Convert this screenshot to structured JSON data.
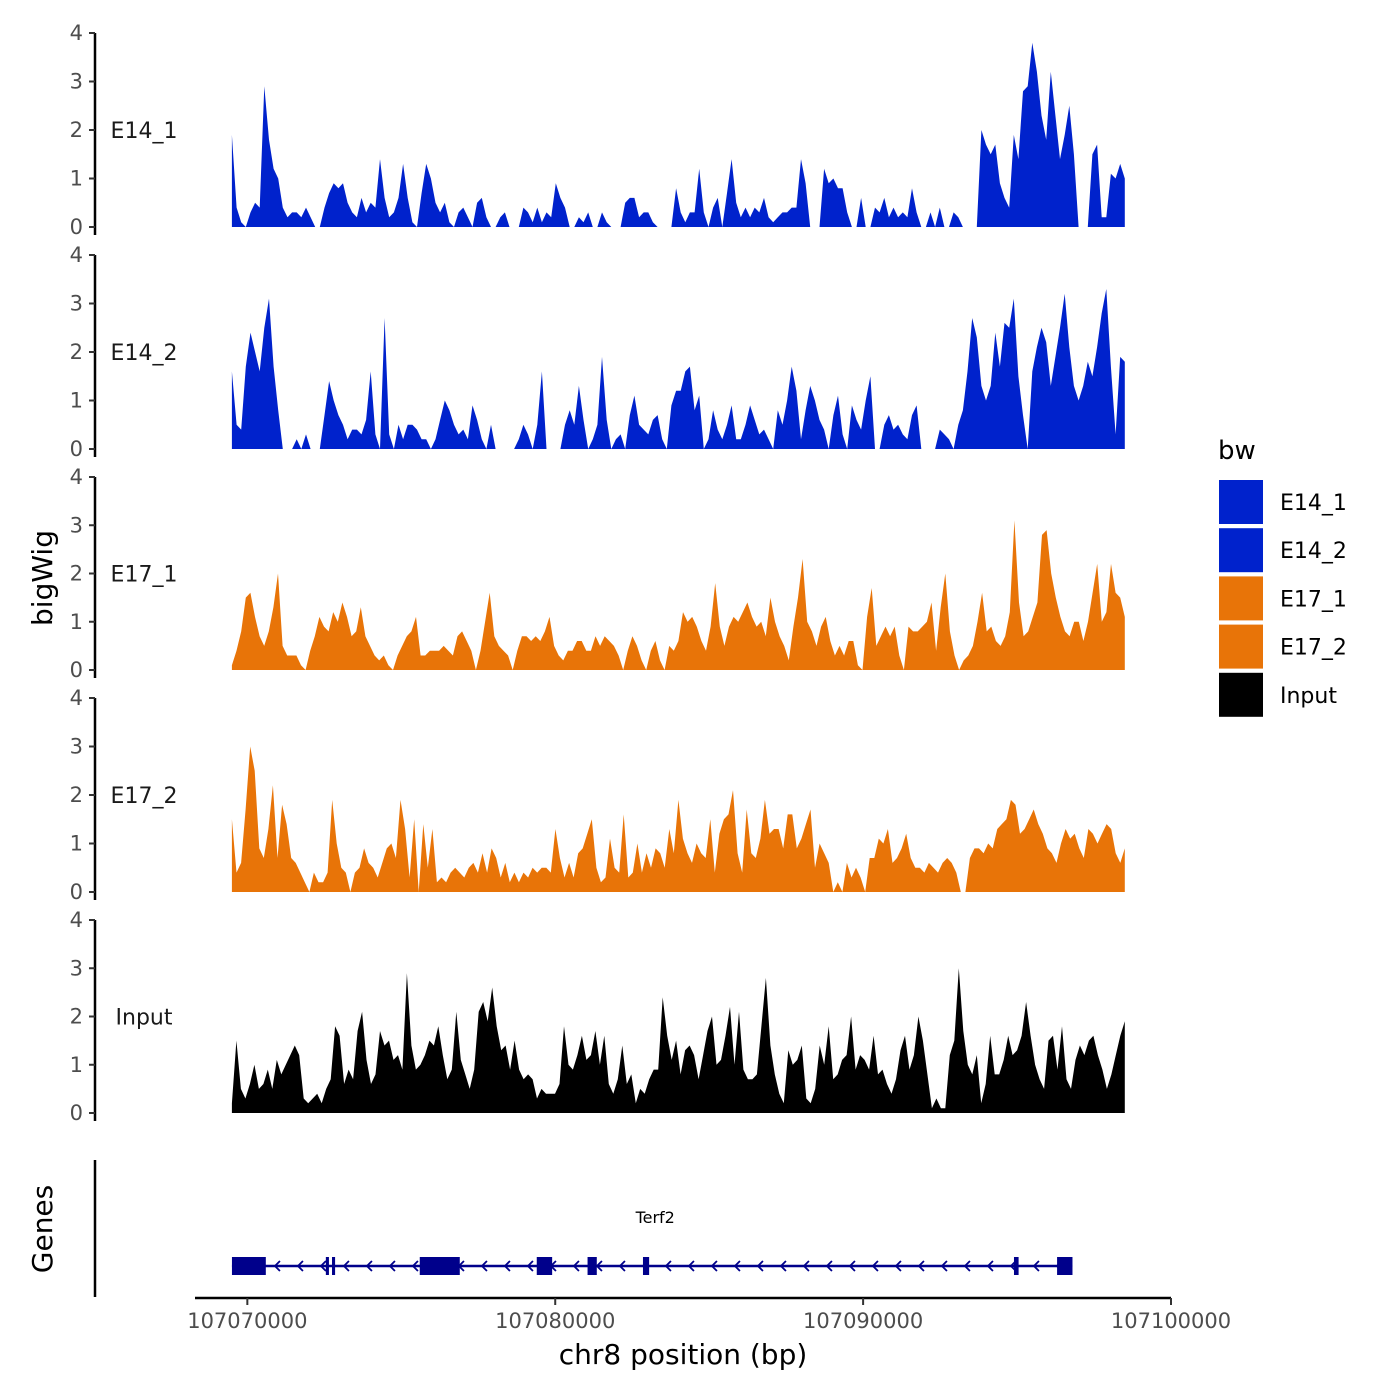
{
  "chart_data": {
    "type": "area",
    "y_axis_title": "bigWig",
    "x_axis_title": "chr8 position (bp)",
    "y_ticks": [
      "0",
      "1",
      "2",
      "3",
      "4"
    ],
    "ylim": [
      0,
      4
    ],
    "xlim": [
      107068300,
      107100000
    ],
    "x_ticks": [
      {
        "value": 107070000,
        "label": "107070000"
      },
      {
        "value": 107080000,
        "label": "107080000"
      },
      {
        "value": 107090000,
        "label": "107090000"
      },
      {
        "value": 107100000,
        "label": "107100000"
      }
    ],
    "track_range": [
      107069500,
      107098500
    ],
    "legend": {
      "title": "bw",
      "entries": [
        {
          "label": "E14_1",
          "color": "#0022cc"
        },
        {
          "label": "E14_2",
          "color": "#0022cc"
        },
        {
          "label": "E17_1",
          "color": "#e87408"
        },
        {
          "label": "E17_2",
          "color": "#e87408"
        },
        {
          "label": "Input",
          "color": "#000000"
        }
      ]
    },
    "series": [
      {
        "name": "E14_1",
        "color": "#0022cc",
        "values": [
          1.9,
          0.4,
          0.1,
          0.0,
          0.3,
          0.5,
          0.4,
          2.9,
          1.8,
          1.2,
          1.0,
          0.4,
          0.2,
          0.3,
          0.3,
          0.2,
          0.4,
          0.2,
          0.0,
          0.0,
          0.4,
          0.7,
          0.9,
          0.8,
          0.9,
          0.5,
          0.3,
          0.2,
          0.6,
          0.3,
          0.5,
          0.4,
          1.4,
          0.6,
          0.2,
          0.3,
          0.6,
          1.3,
          0.6,
          0.1,
          0.0,
          0.7,
          1.3,
          1.0,
          0.5,
          0.3,
          0.5,
          0.1,
          0.0,
          0.3,
          0.4,
          0.2,
          0.0,
          0.5,
          0.6,
          0.2,
          0.0,
          0.0,
          0.2,
          0.3,
          0.0,
          0.0,
          0.0,
          0.4,
          0.3,
          0.1,
          0.4,
          0.1,
          0.3,
          0.2,
          0.9,
          0.6,
          0.4,
          0.0,
          0.0,
          0.2,
          0.1,
          0.3,
          0.0,
          0.0,
          0.3,
          0.1,
          0.0,
          0.0,
          0.0,
          0.5,
          0.6,
          0.6,
          0.2,
          0.3,
          0.3,
          0.1,
          0.0,
          0.0,
          0.0,
          0.0,
          0.8,
          0.3,
          0.1,
          0.3,
          0.3,
          1.2,
          0.3,
          0.0,
          0.4,
          0.6,
          0.0,
          0.7,
          1.4,
          0.5,
          0.2,
          0.4,
          0.2,
          0.4,
          0.3,
          0.6,
          0.2,
          0.1,
          0.2,
          0.3,
          0.3,
          0.4,
          0.4,
          1.4,
          0.9,
          0.0,
          0.0,
          0.0,
          1.2,
          0.9,
          1.0,
          0.8,
          0.8,
          0.3,
          0.0,
          0.0,
          0.6,
          0.0,
          0.0,
          0.4,
          0.3,
          0.6,
          0.2,
          0.4,
          0.2,
          0.3,
          0.2,
          0.8,
          0.3,
          0.0,
          0.0,
          0.3,
          0.0,
          0.4,
          0.0,
          0.0,
          0.3,
          0.2,
          0.0,
          0.0,
          0.0,
          0.0,
          2.0,
          1.7,
          1.5,
          1.7,
          0.9,
          0.6,
          0.4,
          1.9,
          1.4,
          2.8,
          2.9,
          3.8,
          3.2,
          2.3,
          1.8,
          3.2,
          2.3,
          1.4,
          1.9,
          2.5,
          1.5,
          0.0,
          0.0,
          0.0,
          1.5,
          1.7,
          0.2,
          0.2,
          1.1,
          1.0,
          1.3,
          1.0
        ]
      },
      {
        "name": "E14_2",
        "color": "#0022cc",
        "values": [
          1.6,
          0.5,
          0.4,
          1.7,
          2.4,
          2.0,
          1.6,
          2.5,
          3.1,
          1.7,
          0.8,
          0.0,
          0.0,
          0.0,
          0.2,
          0.0,
          0.3,
          0.0,
          0.0,
          0.0,
          0.7,
          1.4,
          1.0,
          0.7,
          0.5,
          0.2,
          0.4,
          0.4,
          0.3,
          0.6,
          1.6,
          0.3,
          0.0,
          2.7,
          0.3,
          0.0,
          0.5,
          0.2,
          0.5,
          0.5,
          0.4,
          0.2,
          0.2,
          0.0,
          0.2,
          0.6,
          1.0,
          0.8,
          0.5,
          0.3,
          0.4,
          0.2,
          0.9,
          0.6,
          0.2,
          0.0,
          0.5,
          0.0,
          0.0,
          0.0,
          0.0,
          0.0,
          0.2,
          0.5,
          0.3,
          0.0,
          0.5,
          1.6,
          0.0,
          0.0,
          0.0,
          0.0,
          0.5,
          0.8,
          0.5,
          1.3,
          0.6,
          0.0,
          0.2,
          0.5,
          1.9,
          0.6,
          0.0,
          0.2,
          0.3,
          0.0,
          0.7,
          1.1,
          0.5,
          0.4,
          0.3,
          0.6,
          0.7,
          0.2,
          0.0,
          0.9,
          1.2,
          1.2,
          1.6,
          1.7,
          0.8,
          1.1,
          0.0,
          0.2,
          0.8,
          0.4,
          0.2,
          0.5,
          0.9,
          0.2,
          0.2,
          0.5,
          0.9,
          0.6,
          0.3,
          0.4,
          0.2,
          0.0,
          0.8,
          0.5,
          1.0,
          1.7,
          1.2,
          0.2,
          0.8,
          1.3,
          1.0,
          0.6,
          0.4,
          0.0,
          0.7,
          1.1,
          0.3,
          0.0,
          0.9,
          0.6,
          0.4,
          1.0,
          1.5,
          0.0,
          0.0,
          0.5,
          0.7,
          0.4,
          0.5,
          0.3,
          0.2,
          0.7,
          0.9,
          0.0,
          0.0,
          0.0,
          0.0,
          0.4,
          0.3,
          0.2,
          0.0,
          0.5,
          0.8,
          1.6,
          2.7,
          2.3,
          1.3,
          1.0,
          1.3,
          2.4,
          1.7,
          2.6,
          2.5,
          3.1,
          1.5,
          0.7,
          0.0,
          1.6,
          2.1,
          2.5,
          2.2,
          1.3,
          1.9,
          2.5,
          3.2,
          2.1,
          1.3,
          1.0,
          1.3,
          1.8,
          1.5,
          2.1,
          2.8,
          3.3,
          1.7,
          0.3,
          1.9,
          1.8
        ]
      },
      {
        "name": "E17_1",
        "color": "#e87408",
        "values": [
          0.1,
          0.4,
          0.8,
          1.5,
          1.6,
          1.1,
          0.7,
          0.5,
          0.8,
          1.3,
          2.0,
          0.5,
          0.3,
          0.3,
          0.3,
          0.1,
          0.0,
          0.4,
          0.7,
          1.1,
          0.9,
          0.8,
          1.2,
          1.0,
          1.4,
          1.1,
          0.7,
          0.8,
          1.3,
          0.7,
          0.5,
          0.3,
          0.2,
          0.3,
          0.1,
          0.0,
          0.3,
          0.5,
          0.7,
          0.8,
          1.1,
          0.3,
          0.3,
          0.4,
          0.4,
          0.4,
          0.5,
          0.4,
          0.3,
          0.7,
          0.8,
          0.6,
          0.4,
          0.0,
          0.4,
          1.0,
          1.6,
          0.7,
          0.5,
          0.4,
          0.3,
          0.0,
          0.4,
          0.7,
          0.7,
          0.6,
          0.7,
          0.6,
          0.8,
          1.1,
          0.5,
          0.3,
          0.2,
          0.4,
          0.4,
          0.6,
          0.6,
          0.4,
          0.4,
          0.7,
          0.5,
          0.7,
          0.6,
          0.5,
          0.3,
          0.0,
          0.4,
          0.7,
          0.5,
          0.2,
          0.0,
          0.4,
          0.6,
          0.2,
          0.0,
          0.5,
          0.4,
          0.6,
          1.2,
          1.0,
          1.1,
          0.9,
          0.6,
          0.4,
          0.9,
          1.8,
          0.9,
          0.5,
          0.9,
          1.1,
          1.0,
          1.2,
          1.4,
          1.1,
          0.9,
          1.0,
          0.7,
          1.5,
          1.0,
          0.7,
          0.5,
          0.2,
          0.9,
          1.5,
          2.3,
          1.0,
          0.8,
          0.5,
          0.9,
          1.1,
          0.6,
          0.3,
          0.5,
          0.3,
          0.6,
          0.6,
          0.1,
          0.0,
          1.1,
          1.7,
          0.5,
          0.7,
          0.9,
          0.7,
          0.9,
          0.3,
          0.0,
          0.9,
          0.8,
          0.8,
          0.9,
          1.0,
          1.4,
          0.4,
          1.3,
          2.0,
          0.8,
          0.3,
          0.0,
          0.2,
          0.3,
          0.5,
          1.0,
          1.6,
          0.8,
          0.9,
          0.6,
          0.5,
          0.7,
          1.2,
          3.1,
          1.4,
          0.7,
          0.8,
          1.1,
          1.4,
          2.8,
          2.9,
          2.0,
          1.5,
          1.1,
          0.8,
          0.7,
          1.0,
          1.0,
          0.6,
          1.0,
          1.6,
          2.2,
          1.0,
          1.2,
          2.2,
          1.6,
          1.5,
          1.1
        ]
      },
      {
        "name": "E17_2",
        "color": "#e87408",
        "values": [
          1.5,
          0.4,
          0.6,
          1.7,
          3.0,
          2.5,
          0.9,
          0.7,
          1.3,
          2.2,
          0.7,
          1.8,
          1.4,
          0.7,
          0.6,
          0.4,
          0.2,
          0.0,
          0.4,
          0.2,
          0.2,
          0.4,
          1.9,
          1.0,
          0.5,
          0.4,
          0.0,
          0.4,
          0.5,
          0.9,
          0.6,
          0.5,
          0.3,
          0.6,
          0.9,
          1.0,
          0.7,
          1.9,
          1.3,
          0.3,
          1.5,
          0.0,
          1.4,
          0.5,
          1.3,
          0.2,
          0.3,
          0.2,
          0.4,
          0.5,
          0.4,
          0.3,
          0.5,
          0.6,
          0.4,
          0.8,
          0.4,
          0.9,
          0.7,
          0.3,
          0.6,
          0.2,
          0.4,
          0.2,
          0.4,
          0.3,
          0.5,
          0.4,
          0.5,
          0.5,
          0.4,
          1.3,
          0.7,
          0.3,
          0.6,
          0.3,
          0.8,
          0.9,
          1.2,
          1.5,
          0.5,
          0.2,
          0.3,
          1.1,
          0.5,
          0.4,
          1.6,
          0.3,
          0.4,
          1.0,
          0.4,
          0.8,
          0.5,
          0.9,
          0.8,
          0.5,
          1.3,
          0.8,
          1.9,
          1.1,
          0.8,
          0.6,
          1.0,
          0.8,
          0.7,
          1.5,
          0.4,
          1.2,
          1.5,
          1.6,
          2.1,
          0.8,
          0.4,
          1.7,
          0.8,
          0.7,
          1.1,
          1.9,
          1.2,
          1.3,
          1.3,
          0.9,
          1.6,
          1.6,
          0.9,
          1.1,
          1.4,
          1.7,
          0.5,
          1.0,
          0.8,
          0.6,
          0.0,
          0.2,
          0.0,
          0.6,
          0.3,
          0.5,
          0.3,
          0.0,
          0.7,
          0.7,
          1.1,
          1.0,
          1.3,
          0.6,
          0.7,
          0.9,
          1.2,
          0.7,
          0.5,
          0.5,
          0.4,
          0.6,
          0.5,
          0.4,
          0.6,
          0.7,
          0.6,
          0.4,
          0.0,
          0.0,
          0.7,
          0.9,
          0.9,
          0.8,
          1.0,
          0.9,
          1.3,
          1.4,
          1.5,
          1.9,
          1.8,
          1.2,
          1.3,
          1.5,
          1.7,
          1.4,
          1.2,
          0.9,
          0.8,
          0.6,
          1.0,
          1.3,
          1.1,
          1.2,
          0.9,
          0.7,
          1.3,
          1.2,
          1.0,
          1.2,
          1.4,
          1.3,
          0.8,
          0.6,
          0.9
        ]
      },
      {
        "name": "Input",
        "color": "#000000",
        "values": [
          0.2,
          1.5,
          0.5,
          0.3,
          0.6,
          1.0,
          0.5,
          0.6,
          0.9,
          0.5,
          1.1,
          0.8,
          1.0,
          1.2,
          1.4,
          1.2,
          0.3,
          0.2,
          0.3,
          0.4,
          0.2,
          0.5,
          0.7,
          1.8,
          1.6,
          0.6,
          0.9,
          0.7,
          1.7,
          2.1,
          1.1,
          0.6,
          0.8,
          1.7,
          1.4,
          1.5,
          1.1,
          1.2,
          0.9,
          2.9,
          1.4,
          0.9,
          1.0,
          1.2,
          1.5,
          1.4,
          1.8,
          1.2,
          0.7,
          0.9,
          2.1,
          1.1,
          0.8,
          0.5,
          0.9,
          2.1,
          2.3,
          1.9,
          2.6,
          1.8,
          1.3,
          1.4,
          0.9,
          1.5,
          0.9,
          0.7,
          0.8,
          0.7,
          0.3,
          0.5,
          0.4,
          0.4,
          0.4,
          0.6,
          1.8,
          1.0,
          0.9,
          1.2,
          1.6,
          1.1,
          1.2,
          1.7,
          1.0,
          1.6,
          0.6,
          0.4,
          0.7,
          1.4,
          0.6,
          0.8,
          0.2,
          0.5,
          0.4,
          0.7,
          0.9,
          0.9,
          2.4,
          1.6,
          1.1,
          1.5,
          0.8,
          1.3,
          1.4,
          1.2,
          0.7,
          1.2,
          1.7,
          2.0,
          1.0,
          1.1,
          1.6,
          2.2,
          1.0,
          2.1,
          0.9,
          0.7,
          0.7,
          0.8,
          1.8,
          2.8,
          1.4,
          0.8,
          0.4,
          0.2,
          1.3,
          1.0,
          1.1,
          1.4,
          0.3,
          0.2,
          0.5,
          1.4,
          1.0,
          1.8,
          0.7,
          0.8,
          1.1,
          1.2,
          2.0,
          0.9,
          1.2,
          1.1,
          0.9,
          1.6,
          0.8,
          0.9,
          0.6,
          0.4,
          0.7,
          1.3,
          1.6,
          0.9,
          1.2,
          2.0,
          1.5,
          0.8,
          0.1,
          0.3,
          0.1,
          0.1,
          1.2,
          1.5,
          3.0,
          1.7,
          1.0,
          0.8,
          1.2,
          0.2,
          0.6,
          1.6,
          0.8,
          0.8,
          1.1,
          1.6,
          1.2,
          1.3,
          1.6,
          2.3,
          1.6,
          1.0,
          0.7,
          0.5,
          1.5,
          1.6,
          0.9,
          1.8,
          0.7,
          0.5,
          1.1,
          1.4,
          1.2,
          1.5,
          1.6,
          1.2,
          0.9,
          0.5,
          0.8,
          1.2,
          1.6,
          1.9
        ]
      }
    ],
    "genes": {
      "title": "Genes",
      "gene": {
        "name": "Terf2",
        "strand": "-",
        "start": 107069500,
        "end": 107096800,
        "exons": [
          [
            107069500,
            107070600
          ],
          [
            107072550,
            107072650
          ],
          [
            107072750,
            107072850
          ],
          [
            107075600,
            107076900
          ],
          [
            107079400,
            107079900
          ],
          [
            107081050,
            107081350
          ],
          [
            107082850,
            107083050
          ],
          [
            107094900,
            107095050
          ],
          [
            107096300,
            107096800
          ]
        ]
      }
    }
  }
}
